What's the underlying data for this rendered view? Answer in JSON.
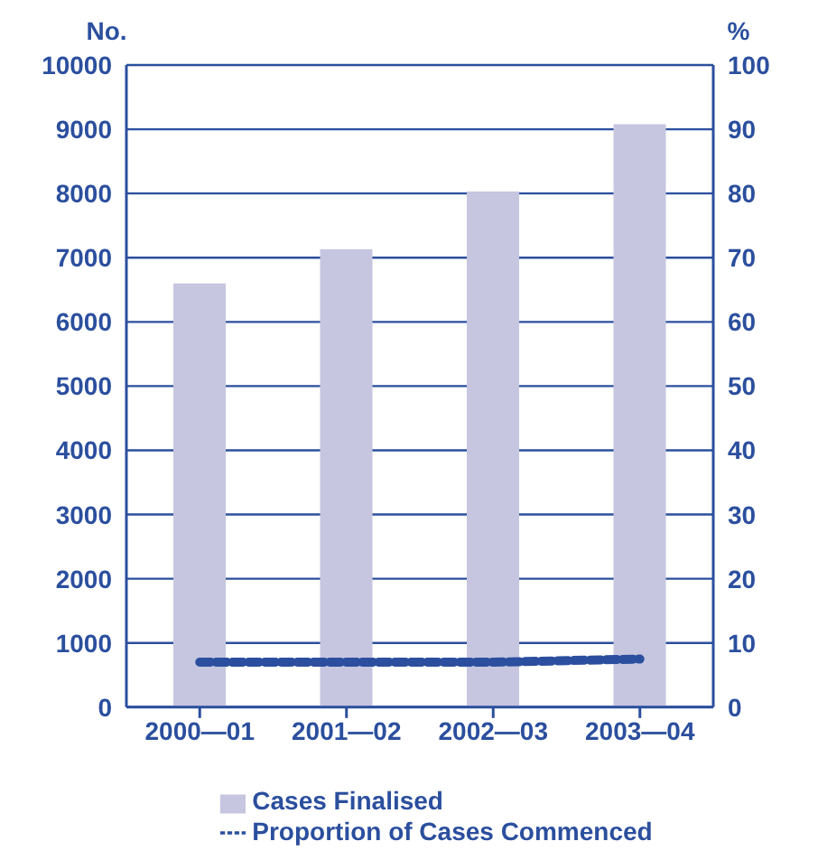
{
  "chart_data": {
    "type": "bar",
    "ylabel": "No.",
    "y2label": "%",
    "categories": [
      "2000—01",
      "2001—02",
      "2002—03",
      "2003—04"
    ],
    "series": [
      {
        "name": "Cases Finalised",
        "color": "#c6c6e0",
        "values": [
          6600,
          7130,
          8030,
          9080
        ]
      },
      {
        "name": "Proportion of Cases Commenced",
        "type": "line",
        "axis": "y2",
        "color": "#2b4f9e",
        "line_style": "dashed",
        "values": [
          7,
          7,
          7,
          7.5
        ]
      }
    ],
    "ylim": [
      0,
      10000
    ],
    "yticks": [
      0,
      1000,
      2000,
      3000,
      4000,
      5000,
      6000,
      7000,
      8000,
      9000,
      10000
    ],
    "y2lim": [
      0,
      100
    ],
    "y2ticks": [
      0,
      10,
      20,
      30,
      40,
      50,
      60,
      70,
      80,
      90,
      100
    ],
    "grid": "y",
    "legend": "bottom",
    "marker": "none"
  }
}
